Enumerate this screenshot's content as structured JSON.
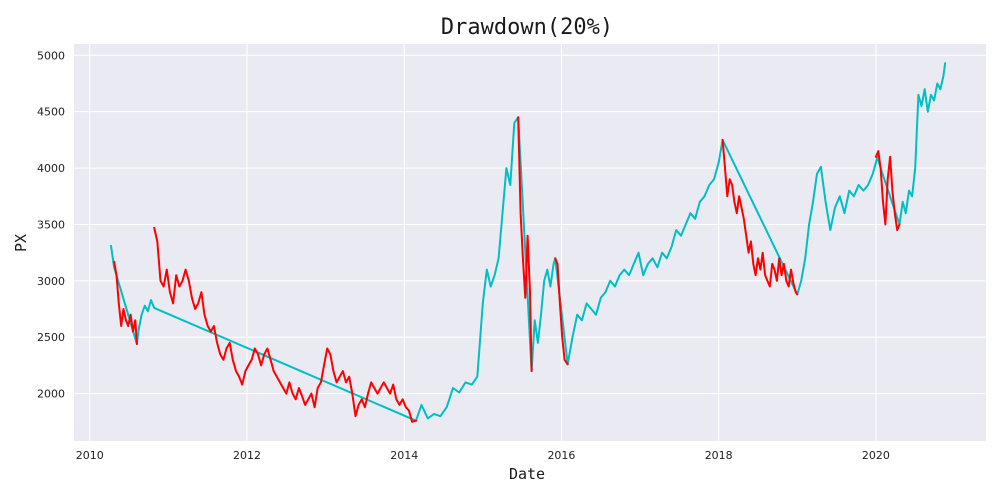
{
  "chart_data": {
    "type": "line",
    "title": "Drawdown(20%)",
    "xlabel": "Date",
    "ylabel": "PX",
    "xlim": [
      2009.8,
      2021.4
    ],
    "ylim": [
      1580,
      5100
    ],
    "x_ticks": [
      2010,
      2012,
      2014,
      2016,
      2018,
      2020
    ],
    "y_ticks": [
      2000,
      2500,
      3000,
      3500,
      4000,
      4500,
      5000
    ],
    "grid": true,
    "legend": "none",
    "colors": {
      "normal": "#00bfc4",
      "drawdown": "#ff0000",
      "background": "#eaeaf2",
      "grid": "#ffffff"
    },
    "series": [
      {
        "color": "#00bfc4",
        "x": [
          2010.27,
          2010.29,
          2010.31,
          2010.6,
          2010.62,
          2010.66,
          2010.7,
          2010.74,
          2010.78,
          2010.82,
          2014.15,
          2014.22,
          2014.3,
          2014.38,
          2014.46,
          2014.54,
          2014.62,
          2014.7,
          2014.78,
          2014.86,
          2014.93,
          2015.0,
          2015.05,
          2015.1,
          2015.15,
          2015.2,
          2015.25,
          2015.3,
          2015.35,
          2015.4,
          2015.45,
          2015.62,
          2015.66,
          2015.7,
          2015.74,
          2015.78,
          2015.82,
          2015.86,
          2015.9,
          2015.92,
          2016.08,
          2016.14,
          2016.2,
          2016.26,
          2016.32,
          2016.38,
          2016.44,
          2016.5,
          2016.56,
          2016.62,
          2016.68,
          2016.74,
          2016.8,
          2016.86,
          2016.92,
          2016.98,
          2017.04,
          2017.1,
          2017.16,
          2017.22,
          2017.28,
          2017.34,
          2017.4,
          2017.46,
          2017.52,
          2017.58,
          2017.64,
          2017.7,
          2017.76,
          2017.82,
          2017.88,
          2017.94,
          2018.0,
          2018.05,
          2019.0,
          2019.05,
          2019.1,
          2019.15,
          2019.2,
          2019.25,
          2019.3,
          2019.36,
          2019.42,
          2019.48,
          2019.54,
          2019.6,
          2019.66,
          2019.72,
          2019.78,
          2019.84,
          2019.9,
          2019.96,
          2020.02,
          2020.06,
          2020.3,
          2020.34,
          2020.38,
          2020.42,
          2020.46,
          2020.5,
          2020.54,
          2020.58,
          2020.62,
          2020.66,
          2020.7,
          2020.74,
          2020.78,
          2020.82,
          2020.86,
          2020.88
        ],
        "y": [
          3310,
          3220,
          3120,
          2440,
          2560,
          2700,
          2780,
          2730,
          2830,
          2760,
          1760,
          1900,
          1780,
          1820,
          1800,
          1880,
          2050,
          2010,
          2100,
          2080,
          2150,
          2800,
          3100,
          2950,
          3050,
          3200,
          3600,
          4000,
          3850,
          4400,
          4450,
          2200,
          2650,
          2450,
          2700,
          3000,
          3100,
          2950,
          3150,
          3200,
          2260,
          2500,
          2700,
          2650,
          2800,
          2750,
          2700,
          2850,
          2900,
          3000,
          2950,
          3050,
          3100,
          3050,
          3150,
          3250,
          3050,
          3150,
          3200,
          3120,
          3250,
          3200,
          3300,
          3450,
          3400,
          3500,
          3600,
          3550,
          3700,
          3750,
          3850,
          3900,
          4050,
          4250,
          2880,
          3000,
          3200,
          3500,
          3700,
          3950,
          4010,
          3700,
          3450,
          3650,
          3750,
          3600,
          3800,
          3750,
          3850,
          3800,
          3850,
          3950,
          4100,
          4000,
          3500,
          3700,
          3600,
          3800,
          3750,
          4000,
          4650,
          4550,
          4700,
          4500,
          4650,
          4600,
          4750,
          4700,
          4820,
          4930
        ]
      },
      {
        "color": "#ff0000",
        "x": [
          2010.31,
          2010.34,
          2010.37,
          2010.4,
          2010.43,
          2010.46,
          2010.49,
          2010.52,
          2010.55,
          2010.58,
          2010.6
        ],
        "y": [
          3170,
          3050,
          2800,
          2600,
          2750,
          2650,
          2600,
          2700,
          2550,
          2650,
          2440
        ]
      },
      {
        "color": "#ff0000",
        "x": [
          2010.82,
          2010.86,
          2010.9,
          2010.94,
          2010.98,
          2011.02,
          2011.06,
          2011.1,
          2011.14,
          2011.18,
          2011.22,
          2011.26,
          2011.3,
          2011.34,
          2011.38,
          2011.42,
          2011.46,
          2011.5,
          2011.54,
          2011.58,
          2011.62,
          2011.66,
          2011.7,
          2011.74,
          2011.78,
          2011.82,
          2011.86,
          2011.9,
          2011.94,
          2011.98,
          2012.02,
          2012.06,
          2012.1,
          2012.14,
          2012.18,
          2012.22,
          2012.26,
          2012.3,
          2012.34,
          2012.38,
          2012.42,
          2012.46,
          2012.5,
          2012.54,
          2012.58,
          2012.62,
          2012.66,
          2012.7,
          2012.74,
          2012.78,
          2012.82,
          2012.86,
          2012.9,
          2012.94,
          2012.98,
          2013.02,
          2013.06,
          2013.1,
          2013.14,
          2013.18,
          2013.22,
          2013.26,
          2013.3,
          2013.34,
          2013.38,
          2013.42,
          2013.46,
          2013.5,
          2013.54,
          2013.58,
          2013.62,
          2013.66,
          2013.7,
          2013.74,
          2013.78,
          2013.82,
          2013.86,
          2013.9,
          2013.94,
          2013.98,
          2014.02,
          2014.06,
          2014.1,
          2014.15
        ],
        "y": [
          3470,
          3350,
          3000,
          2950,
          3100,
          2900,
          2800,
          3050,
          2950,
          3000,
          3100,
          3000,
          2850,
          2750,
          2800,
          2900,
          2700,
          2600,
          2550,
          2600,
          2450,
          2350,
          2300,
          2400,
          2450,
          2300,
          2200,
          2150,
          2080,
          2200,
          2250,
          2300,
          2400,
          2350,
          2250,
          2350,
          2400,
          2300,
          2200,
          2150,
          2100,
          2050,
          2000,
          2100,
          2000,
          1950,
          2050,
          1980,
          1900,
          1950,
          2000,
          1880,
          2050,
          2100,
          2250,
          2400,
          2350,
          2200,
          2100,
          2150,
          2200,
          2100,
          2150,
          2000,
          1800,
          1900,
          1950,
          1880,
          2000,
          2100,
          2050,
          2000,
          2050,
          2100,
          2050,
          2000,
          2080,
          1950,
          1900,
          1950,
          1880,
          1850,
          1750,
          1760
        ]
      },
      {
        "color": "#ff0000",
        "x": [
          2015.45,
          2015.48,
          2015.51,
          2015.54,
          2015.57,
          2015.6,
          2015.62
        ],
        "y": [
          4450,
          3600,
          3200,
          2850,
          3400,
          2900,
          2200
        ]
      },
      {
        "color": "#ff0000",
        "x": [
          2015.92,
          2015.95,
          2015.98,
          2016.01,
          2016.04,
          2016.08
        ],
        "y": [
          3200,
          3150,
          2800,
          2500,
          2300,
          2260
        ]
      },
      {
        "color": "#ff0000",
        "x": [
          2018.05,
          2018.08,
          2018.11,
          2018.14,
          2018.17,
          2018.2,
          2018.23,
          2018.26,
          2018.29,
          2018.32,
          2018.35,
          2018.38,
          2018.41,
          2018.44,
          2018.47,
          2018.5,
          2018.53,
          2018.56,
          2018.59,
          2018.62,
          2018.65,
          2018.68,
          2018.71,
          2018.74,
          2018.77,
          2018.8,
          2018.83,
          2018.86,
          2018.89,
          2018.92,
          2018.95,
          2018.98,
          2019.0
        ],
        "y": [
          4250,
          4000,
          3750,
          3900,
          3850,
          3700,
          3600,
          3750,
          3650,
          3550,
          3400,
          3250,
          3350,
          3150,
          3050,
          3200,
          3100,
          3250,
          3050,
          3000,
          2950,
          3150,
          3100,
          3000,
          3200,
          3050,
          3150,
          3000,
          2950,
          3100,
          2980,
          2900,
          2880
        ]
      },
      {
        "color": "#ff0000",
        "x": [
          2020.0,
          2020.03,
          2020.06,
          2020.09,
          2020.12,
          2020.15,
          2020.18,
          2020.21,
          2020.24,
          2020.27,
          2020.3
        ],
        "y": [
          4100,
          4150,
          4000,
          3700,
          3500,
          3900,
          4100,
          3800,
          3600,
          3450,
          3500
        ]
      }
    ]
  }
}
